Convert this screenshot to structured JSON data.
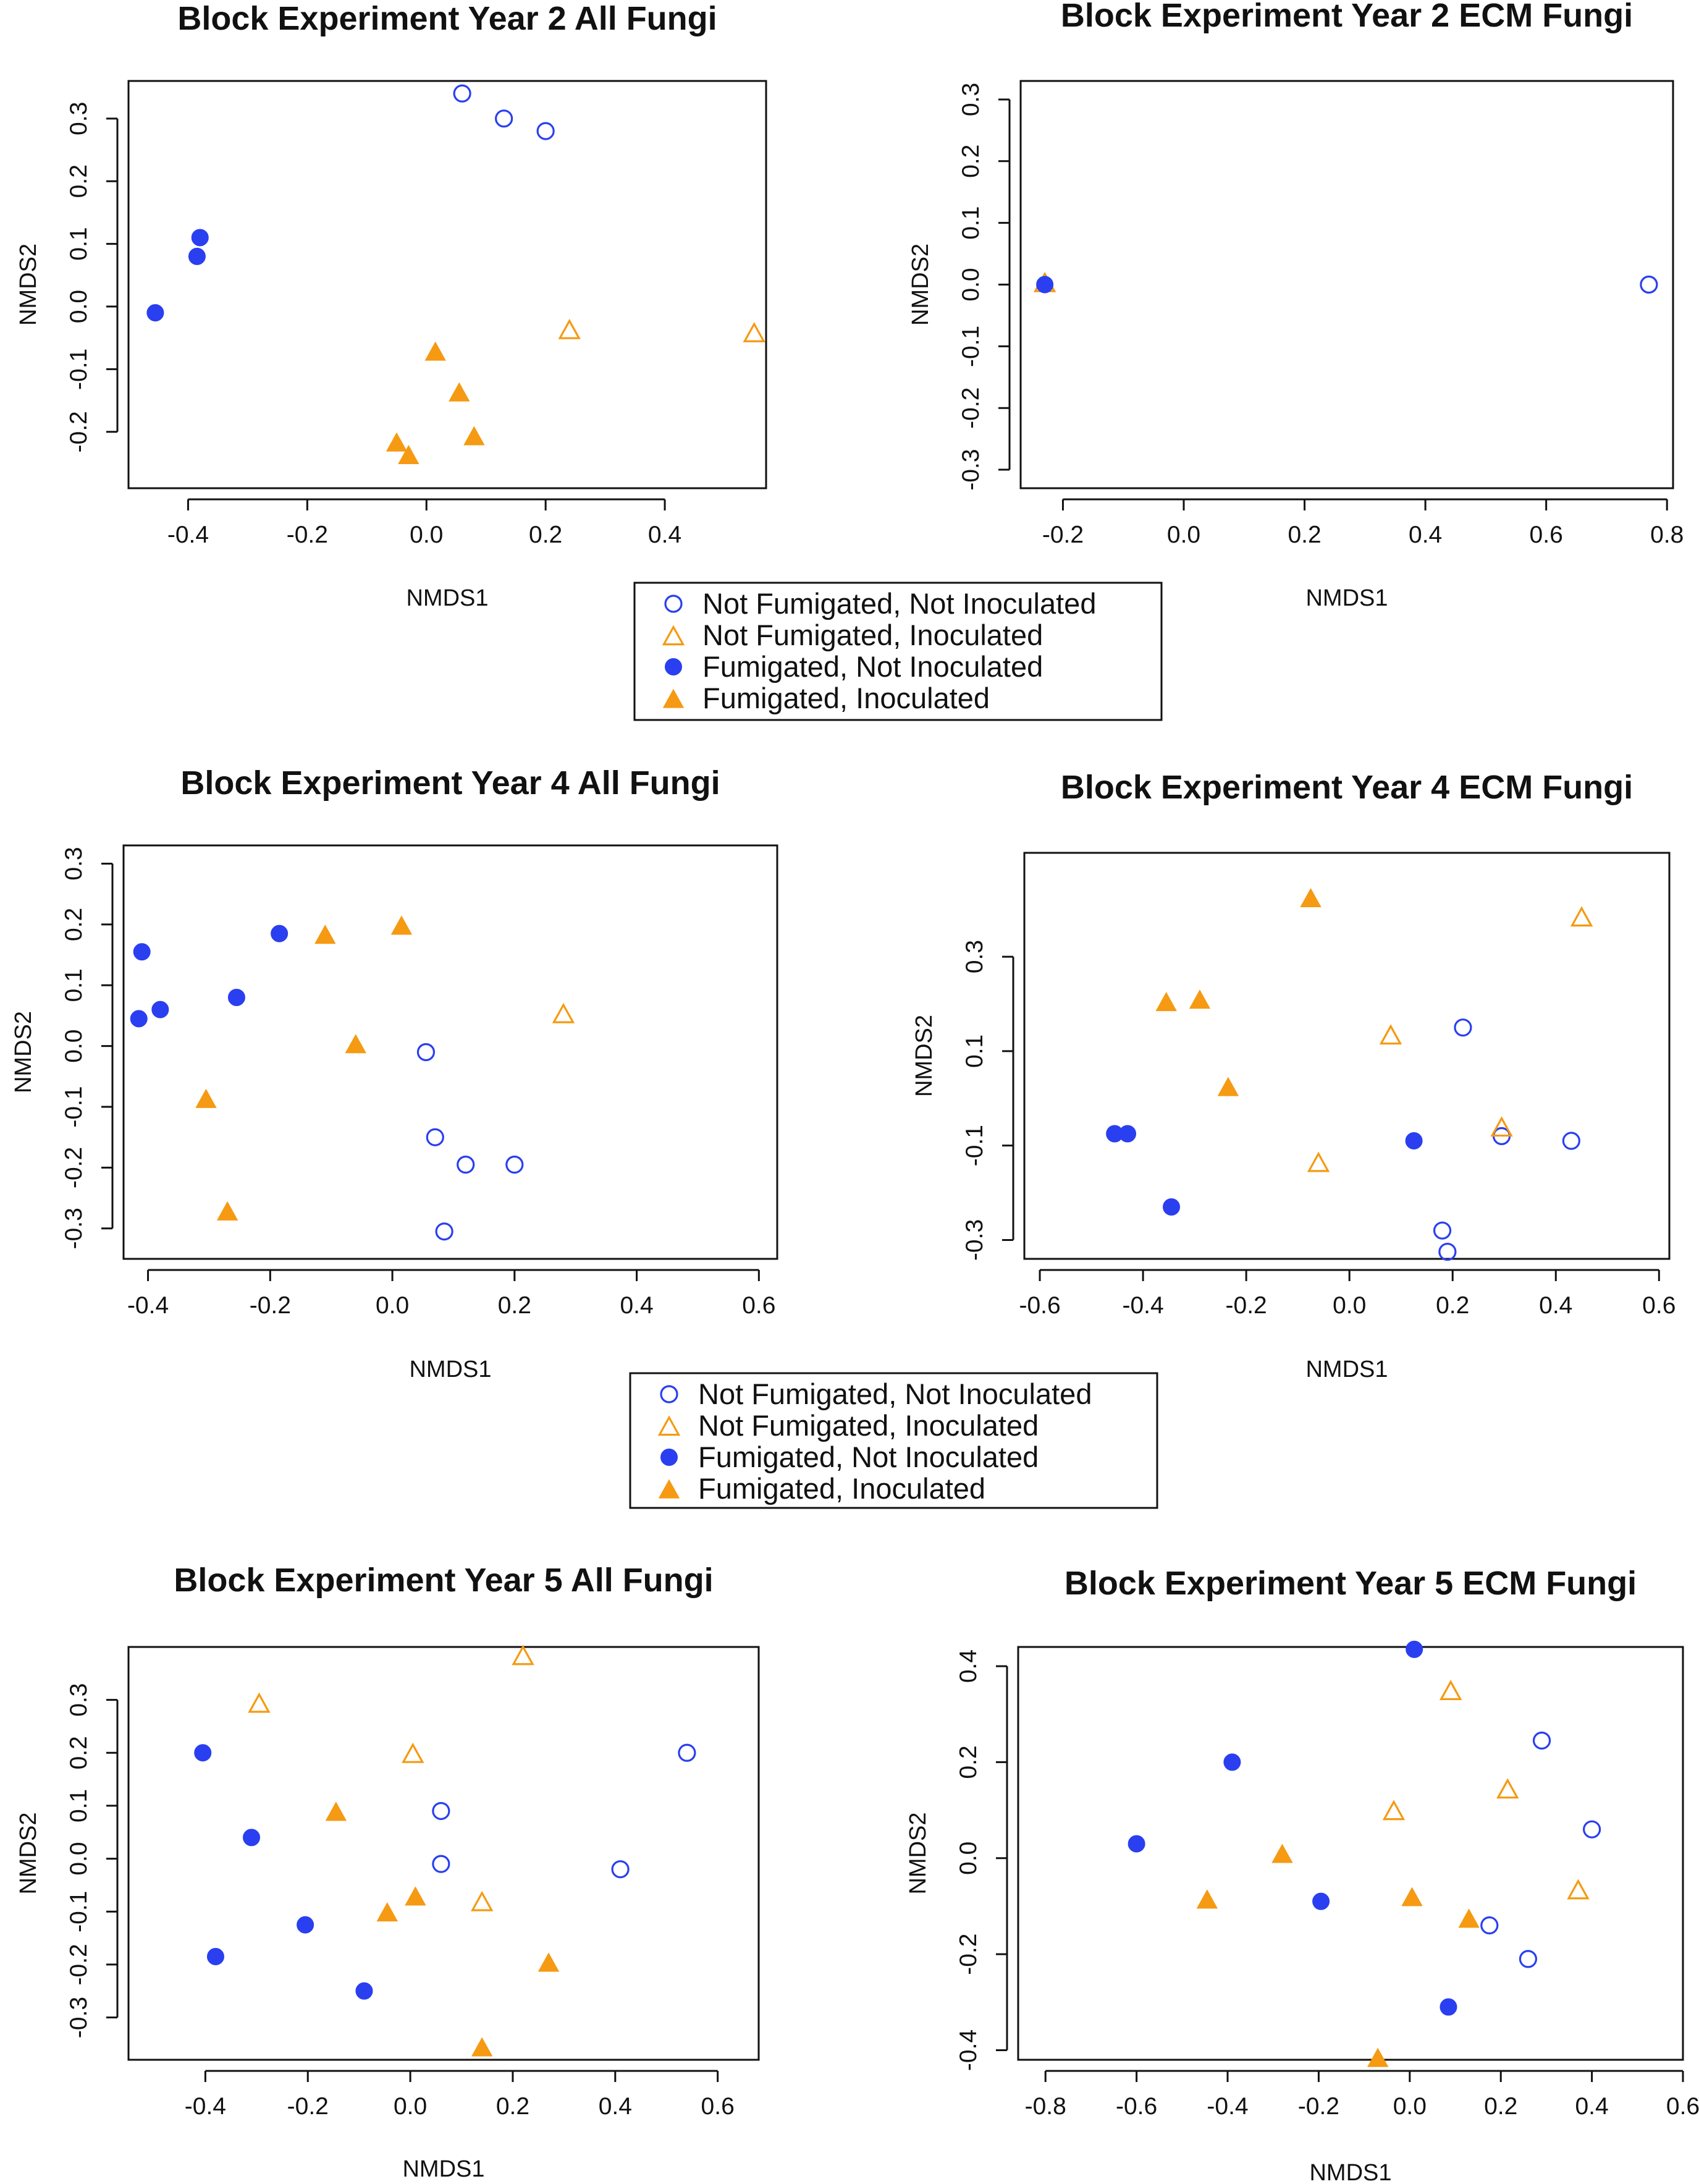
{
  "colors": {
    "blue": "#2a3ff0",
    "orange": "#f59a12",
    "axis": "#111111"
  },
  "series_legend": [
    {
      "key": "nfni",
      "label": "Not Fumigated, Not Inoculated",
      "marker": "open-circle",
      "color": "#2a3ff0"
    },
    {
      "key": "nfi",
      "label": "Not Fumigated, Inoculated",
      "marker": "open-triangle",
      "color": "#f59a12"
    },
    {
      "key": "fni",
      "label": "Fumigated, Not Inoculated",
      "marker": "filled-circle",
      "color": "#2a3ff0"
    },
    {
      "key": "fi",
      "label": "Fumigated, Inoculated",
      "marker": "filled-triangle",
      "color": "#f59a12"
    }
  ],
  "chart_data": [
    {
      "id": "y2-all",
      "type": "scatter",
      "title": "Block Experiment Year 2 All Fungi",
      "xlabel": "NMDS1",
      "ylabel": "NMDS2",
      "xlim": [
        -0.5,
        0.57
      ],
      "ylim": [
        -0.29,
        0.36
      ],
      "xticks": [
        "-0.4",
        "-0.2",
        "0.0",
        "0.2",
        "0.4"
      ],
      "yticks": [
        "-0.2",
        "-0.1",
        "0.0",
        "0.1",
        "0.2",
        "0.3"
      ],
      "series": {
        "nfni": [
          [
            0.06,
            0.34
          ],
          [
            0.13,
            0.3
          ],
          [
            0.2,
            0.28
          ]
        ],
        "nfi": [
          [
            0.24,
            -0.04
          ],
          [
            0.55,
            -0.045
          ]
        ],
        "fni": [
          [
            -0.38,
            0.11
          ],
          [
            -0.385,
            0.08
          ],
          [
            -0.455,
            -0.01
          ]
        ],
        "fi": [
          [
            0.015,
            -0.075
          ],
          [
            0.055,
            -0.14
          ],
          [
            0.08,
            -0.21
          ],
          [
            -0.05,
            -0.22
          ],
          [
            -0.03,
            -0.24
          ]
        ]
      }
    },
    {
      "id": "y2-ecm",
      "type": "scatter",
      "title": "Block Experiment Year 2 ECM Fungi",
      "xlabel": "NMDS1",
      "ylabel": "NMDS2",
      "xlim": [
        -0.27,
        0.81
      ],
      "ylim": [
        -0.33,
        0.33
      ],
      "xticks": [
        "-0.2",
        "0.0",
        "0.2",
        "0.4",
        "0.6",
        "0.8"
      ],
      "yticks": [
        "-0.3",
        "-0.2",
        "-0.1",
        "0.0",
        "0.1",
        "0.2",
        "0.3"
      ],
      "series": {
        "nfni": [
          [
            0.77,
            0.0
          ]
        ],
        "nfi": [
          [
            -0.23,
            0.0
          ]
        ],
        "fni": [
          [
            -0.23,
            0.0
          ]
        ],
        "fi": []
      }
    },
    {
      "id": "y4-all",
      "type": "scatter",
      "title": "Block Experiment Year 4 All Fungi",
      "xlabel": "NMDS1",
      "ylabel": "NMDS2",
      "xlim": [
        -0.44,
        0.63
      ],
      "ylim": [
        -0.35,
        0.33
      ],
      "xticks": [
        "-0.4",
        "-0.2",
        "0.0",
        "0.2",
        "0.4",
        "0.6"
      ],
      "yticks": [
        "-0.3",
        "-0.2",
        "-0.1",
        "0.0",
        "0.1",
        "0.2",
        "0.3"
      ],
      "series": {
        "nfni": [
          [
            0.055,
            -0.01
          ],
          [
            0.07,
            -0.15
          ],
          [
            0.12,
            -0.195
          ],
          [
            0.2,
            -0.195
          ],
          [
            0.085,
            -0.305
          ]
        ],
        "nfi": [
          [
            0.28,
            0.05
          ]
        ],
        "fni": [
          [
            -0.41,
            0.155
          ],
          [
            -0.415,
            0.045
          ],
          [
            -0.38,
            0.06
          ],
          [
            -0.255,
            0.08
          ],
          [
            -0.185,
            0.185
          ]
        ],
        "fi": [
          [
            -0.11,
            0.18
          ],
          [
            0.015,
            0.195
          ],
          [
            -0.06,
            0.0
          ],
          [
            -0.305,
            -0.09
          ],
          [
            -0.27,
            -0.275
          ]
        ]
      }
    },
    {
      "id": "y4-ecm",
      "type": "scatter",
      "title": "Block Experiment Year 4 ECM Fungi",
      "xlabel": "NMDS1",
      "ylabel": "NMDS2",
      "xlim": [
        -0.63,
        0.62
      ],
      "ylim": [
        -0.34,
        0.52
      ],
      "xticks": [
        "-0.6",
        "-0.4",
        "-0.2",
        "0.0",
        "0.2",
        "0.4",
        "0.6"
      ],
      "yticks": [
        "-0.3",
        "-0.1",
        "0.1",
        "0.3"
      ],
      "series": {
        "nfni": [
          [
            0.22,
            0.15
          ],
          [
            0.295,
            -0.08
          ],
          [
            0.43,
            -0.09
          ],
          [
            0.18,
            -0.28
          ],
          [
            0.19,
            -0.325
          ]
        ],
        "nfi": [
          [
            0.45,
            0.38
          ],
          [
            0.08,
            0.13
          ],
          [
            0.295,
            -0.065
          ],
          [
            -0.06,
            -0.14
          ]
        ],
        "fni": [
          [
            -0.455,
            -0.075
          ],
          [
            -0.43,
            -0.075
          ],
          [
            0.125,
            -0.09
          ],
          [
            -0.345,
            -0.23
          ]
        ],
        "fi": [
          [
            -0.075,
            0.42
          ],
          [
            -0.355,
            0.2
          ],
          [
            -0.29,
            0.205
          ],
          [
            -0.235,
            0.02
          ]
        ]
      }
    },
    {
      "id": "y5-all",
      "type": "scatter",
      "title": "Block Experiment Year 5 All Fungi",
      "xlabel": "NMDS1",
      "ylabel": "NMDS2",
      "xlim": [
        -0.55,
        0.68
      ],
      "ylim": [
        -0.38,
        0.4
      ],
      "xticks": [
        "-0.4",
        "-0.2",
        "0.0",
        "0.2",
        "0.4",
        "0.6"
      ],
      "yticks": [
        "-0.3",
        "-0.2",
        "-0.1",
        "0.0",
        "0.1",
        "0.2",
        "0.3"
      ],
      "series": {
        "nfni": [
          [
            0.54,
            0.2
          ],
          [
            0.06,
            0.09
          ],
          [
            0.06,
            -0.01
          ],
          [
            0.41,
            -0.02
          ]
        ],
        "nfi": [
          [
            0.22,
            0.38
          ],
          [
            -0.295,
            0.29
          ],
          [
            0.005,
            0.195
          ],
          [
            0.14,
            -0.085
          ]
        ],
        "fni": [
          [
            -0.405,
            0.2
          ],
          [
            -0.31,
            0.04
          ],
          [
            -0.205,
            -0.125
          ],
          [
            -0.38,
            -0.185
          ],
          [
            -0.09,
            -0.25
          ]
        ],
        "fi": [
          [
            -0.145,
            0.085
          ],
          [
            0.01,
            -0.075
          ],
          [
            -0.045,
            -0.105
          ],
          [
            0.27,
            -0.2
          ],
          [
            0.14,
            -0.36
          ]
        ]
      }
    },
    {
      "id": "y5-ecm",
      "type": "scatter",
      "title": "Block Experiment Year 5 ECM Fungi",
      "xlabel": "NMDS1",
      "ylabel": "NMDS2",
      "xlim": [
        -0.86,
        0.6
      ],
      "ylim": [
        -0.42,
        0.44
      ],
      "xticks": [
        "-0.8",
        "-0.6",
        "-0.4",
        "-0.2",
        "0.0",
        "0.2",
        "0.4",
        "0.6"
      ],
      "yticks": [
        "-0.4",
        "-0.2",
        "0.0",
        "0.2",
        "0.4"
      ],
      "series": {
        "nfni": [
          [
            0.29,
            0.245
          ],
          [
            0.4,
            0.06
          ],
          [
            0.175,
            -0.14
          ],
          [
            0.26,
            -0.21
          ]
        ],
        "nfi": [
          [
            0.09,
            0.345
          ],
          [
            -0.035,
            0.095
          ],
          [
            0.215,
            0.14
          ],
          [
            0.37,
            -0.07
          ]
        ],
        "fni": [
          [
            0.01,
            0.435
          ],
          [
            -0.39,
            0.2
          ],
          [
            -0.6,
            0.03
          ],
          [
            -0.195,
            -0.09
          ],
          [
            0.085,
            -0.31
          ]
        ],
        "fi": [
          [
            -0.28,
            0.005
          ],
          [
            -0.445,
            -0.09
          ],
          [
            0.005,
            -0.085
          ],
          [
            0.13,
            -0.13
          ],
          [
            -0.07,
            -0.42
          ]
        ]
      }
    }
  ]
}
